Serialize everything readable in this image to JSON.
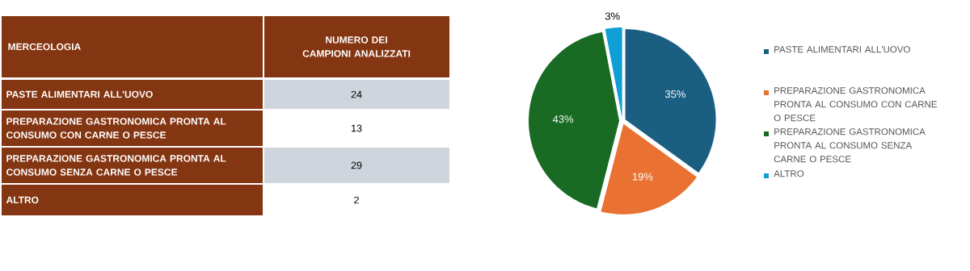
{
  "chart_data": [
    {
      "type": "other",
      "annotations": [
        "MERCEOLOGIA",
        "NUMERO DEI CAMPIONI ANALIZZATI"
      ],
      "categories": [
        "PASTE ALIMENTARI ALL'UOVO",
        "PREPARAZIONE GASTRONOMICA PRONTA AL CONSUMO CON CARNE O PESCE",
        "PREPARAZIONE GASTRONOMICA PRONTA AL CONSUMO SENZA CARNE O PESCE",
        "ALTRO"
      ],
      "values": [
        24,
        13,
        29,
        2
      ],
      "data_labels": true
    },
    {
      "type": "pie",
      "categories": [
        "PASTE ALIMENTARI ALL'UOVO",
        "PREPARAZIONE GASTRONOMICA PRONTA AL CONSUMO CON CARNE O PESCE",
        "PREPARAZIONE GASTRONOMICA PRONTA AL CONSUMO SENZA CARNE O PESCE",
        "ALTRO"
      ],
      "values": [
        35,
        19,
        43,
        3
      ],
      "colors": [
        "#1a5e82",
        "#e97132",
        "#196b24",
        "#0f9ed5"
      ],
      "value_labels": [
        "35%",
        "19%",
        "43%",
        "3%"
      ],
      "legend": "right"
    }
  ]
}
